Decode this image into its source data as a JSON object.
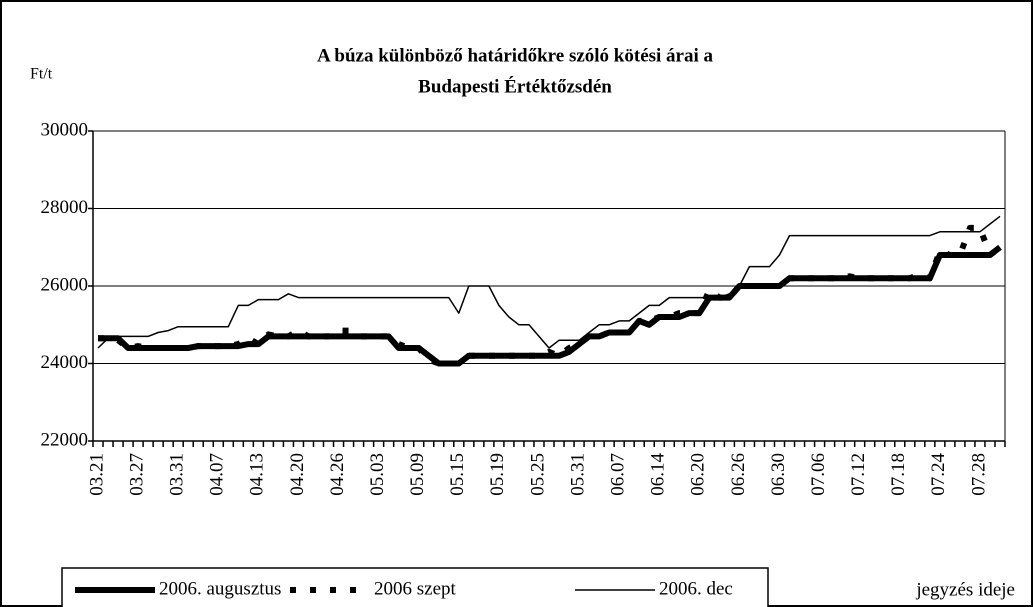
{
  "chart_data": {
    "type": "line",
    "title": [
      "A búza különböző határidőkre szóló kötési árai a",
      "Budapesti Értéktőzsdén"
    ],
    "y_label": "Ft/t",
    "x_label": "jegyzés ideje",
    "categories": [
      "03.21",
      null,
      null,
      null,
      "03.27",
      null,
      null,
      null,
      "03.31",
      null,
      null,
      null,
      "04.07",
      null,
      null,
      null,
      "04.13",
      null,
      null,
      null,
      "04.20",
      null,
      null,
      null,
      "04.26",
      null,
      null,
      null,
      "05.03",
      null,
      null,
      null,
      "05.09",
      null,
      null,
      null,
      "05.15",
      null,
      null,
      null,
      "05.19",
      null,
      null,
      null,
      "05.25",
      null,
      null,
      null,
      "05.31",
      null,
      null,
      null,
      "06.07",
      null,
      null,
      null,
      "06.14",
      null,
      null,
      null,
      "06.20",
      null,
      null,
      null,
      "06.26",
      null,
      null,
      null,
      "06.30",
      null,
      null,
      null,
      "07.06",
      null,
      null,
      null,
      "07.12",
      null,
      null,
      null,
      "07.18",
      null,
      null,
      null,
      "07.24",
      null,
      null,
      null,
      "07.28",
      null,
      null
    ],
    "ylim": [
      22000,
      30000
    ],
    "yticks": [
      22000,
      24000,
      26000,
      28000,
      30000
    ],
    "grid": true,
    "legend": "bottom",
    "series": [
      {
        "name": "2006. augusztus",
        "color": "#000000",
        "width": 6,
        "dash": "none",
        "values": [
          24650,
          24650,
          24650,
          24400,
          24400,
          24400,
          24400,
          24400,
          24400,
          24400,
          24450,
          24450,
          24450,
          24450,
          24450,
          24500,
          24500,
          24700,
          24700,
          24700,
          24700,
          24700,
          24700,
          24700,
          24700,
          24700,
          24700,
          24700,
          24700,
          24700,
          24400,
          24400,
          24400,
          24200,
          24000,
          24000,
          24000,
          24200,
          24200,
          24200,
          24200,
          24200,
          24200,
          24200,
          24200,
          24200,
          24200,
          24300,
          24500,
          24700,
          24700,
          24800,
          24800,
          24800,
          25100,
          25000,
          25200,
          25200,
          25200,
          25300,
          25300,
          25700,
          25700,
          25700,
          26000,
          26000,
          26000,
          26000,
          26000,
          26200,
          26200,
          26200,
          26200,
          26200,
          26200,
          26200,
          26200,
          26200,
          26200,
          26200,
          26200,
          26200,
          26200,
          26200,
          26800,
          26800,
          26800,
          26800,
          26800,
          26800,
          27000
        ]
      },
      {
        "name": "2006 szept",
        "color": "#000000",
        "width": 6,
        "dash": "6 14",
        "values": [
          24650,
          24650,
          24600,
          24400,
          24450,
          24400,
          24400,
          24400,
          24400,
          24400,
          24450,
          24450,
          24450,
          24450,
          24500,
          24650,
          24500,
          24750,
          24700,
          24700,
          24850,
          24700,
          24700,
          24700,
          24850,
          24850,
          24700,
          24700,
          24700,
          24700,
          24500,
          24400,
          24400,
          24100,
          24000,
          24000,
          24000,
          24200,
          24200,
          24200,
          24200,
          24200,
          24200,
          24200,
          24200,
          24300,
          24200,
          24400,
          24500,
          24700,
          24700,
          24800,
          24800,
          24800,
          25100,
          25100,
          25200,
          25200,
          25300,
          25300,
          25300,
          25900,
          25700,
          25700,
          26000,
          26000,
          26000,
          26000,
          26000,
          26200,
          26200,
          26200,
          26200,
          26200,
          26200,
          26250,
          26200,
          26200,
          26200,
          26200,
          26200,
          26200,
          26300,
          26200,
          26900,
          26800,
          26800,
          27500,
          27500,
          26800,
          27000
        ]
      },
      {
        "name": "2006. dec",
        "color": "#000000",
        "width": 1.5,
        "dash": "none",
        "values": [
          24400,
          24650,
          24700,
          24700,
          24700,
          24700,
          24800,
          24850,
          24950,
          24950,
          24950,
          24950,
          24950,
          24950,
          25500,
          25500,
          25650,
          25650,
          25650,
          25800,
          25700,
          25700,
          25700,
          25700,
          25700,
          25700,
          25700,
          25700,
          25700,
          25700,
          25700,
          25700,
          25700,
          25700,
          25700,
          25700,
          25300,
          26000,
          26000,
          26000,
          25500,
          25200,
          25000,
          25000,
          24700,
          24400,
          24600,
          24600,
          24600,
          24800,
          25000,
          25000,
          25100,
          25100,
          25300,
          25500,
          25500,
          25700,
          25700,
          25700,
          25700,
          25700,
          25700,
          25800,
          26000,
          26500,
          26500,
          26500,
          26800,
          27300,
          27300,
          27300,
          27300,
          27300,
          27300,
          27300,
          27300,
          27300,
          27300,
          27300,
          27300,
          27300,
          27300,
          27300,
          27400,
          27400,
          27400,
          27400,
          27400,
          27600,
          27800
        ]
      }
    ]
  }
}
